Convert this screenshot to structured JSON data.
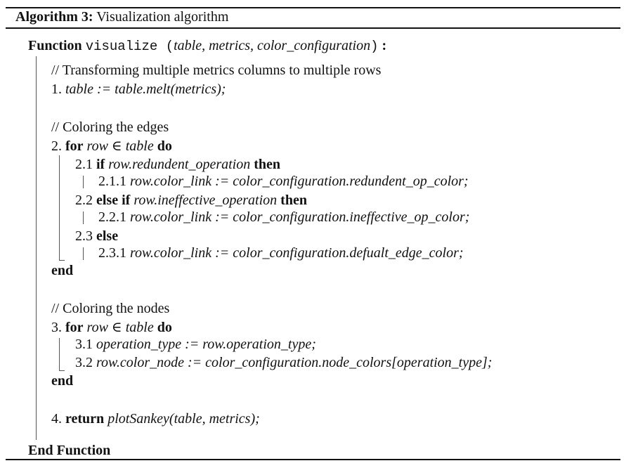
{
  "header": {
    "algo_label": "Algorithm 3:",
    "algo_title": "Visualization algorithm"
  },
  "function_line": {
    "kw": "Function",
    "name": "visualize",
    "open": " (",
    "args": "table, metrics, color_configuration",
    "close": ")",
    "colon": " :"
  },
  "body": {
    "comment1": "// Transforming multiple metrics columns to multiple rows",
    "step1": {
      "num": "1.",
      "code": "table := table.melt(metrics);"
    },
    "comment2": "// Coloring the edges",
    "step2": {
      "num": "2.",
      "for": "for",
      "cond": "row ∈ table",
      "do": "do"
    },
    "step2_1": {
      "num": "2.1",
      "if": "if",
      "cond": "row.redundent_operation",
      "then": "then"
    },
    "step2_1_1": {
      "num": "2.1.1",
      "code": "row.color_link := color_configuration.redundent_op_color;"
    },
    "step2_2": {
      "num": "2.2",
      "elseif": "else if",
      "cond": "row.ineffective_operation",
      "then": "then"
    },
    "step2_2_1": {
      "num": "2.2.1",
      "code": "row.color_link := color_configuration.ineffective_op_color;"
    },
    "step2_3": {
      "num": "2.3",
      "else": "else"
    },
    "step2_3_1": {
      "num": "2.3.1",
      "code": "row.color_link := color_configuration.defualt_edge_color;"
    },
    "end1": "end",
    "comment3": "// Coloring the nodes",
    "step3": {
      "num": "3.",
      "for": "for",
      "cond": "row ∈ table",
      "do": "do"
    },
    "step3_1": {
      "num": "3.1",
      "code": "operation_type := row.operation_type;"
    },
    "step3_2": {
      "num": "3.2",
      "code": "row.color_node := color_configuration.node_colors[operation_type];"
    },
    "end2": "end",
    "step4": {
      "num": "4.",
      "ret": "return",
      "code": "plotSankey(table, metrics);"
    }
  },
  "footer": {
    "end_function": "End Function"
  }
}
